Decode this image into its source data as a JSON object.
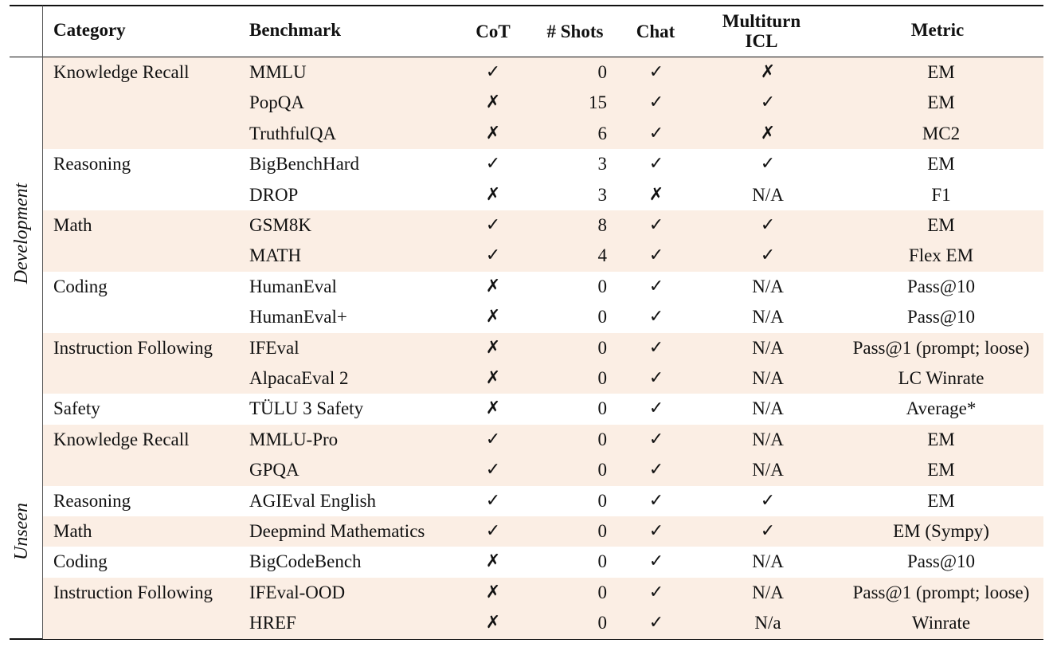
{
  "headers": {
    "category": "Category",
    "benchmark": "Benchmark",
    "cot": "CoT",
    "shots": "# Shots",
    "chat": "Chat",
    "multiturn_line1": "Multiturn",
    "multiturn_line2": "ICL",
    "metric": "Metric"
  },
  "groups": {
    "development": "Development",
    "unseen": "Unseen"
  },
  "marks": {
    "check": "✓",
    "cross": "✗"
  },
  "rows": [
    {
      "category": "Knowledge Recall",
      "benchmark": "MMLU",
      "cot": "✓",
      "shots": "0",
      "chat": "✓",
      "icl": "✗",
      "metric": "EM",
      "shade": true
    },
    {
      "category": "",
      "benchmark": "PopQA",
      "cot": "✗",
      "shots": "15",
      "chat": "✓",
      "icl": "✓",
      "metric": "EM",
      "shade": true
    },
    {
      "category": "",
      "benchmark": "TruthfulQA",
      "cot": "✗",
      "shots": "6",
      "chat": "✓",
      "icl": "✗",
      "metric": "MC2",
      "shade": true
    },
    {
      "category": "Reasoning",
      "benchmark": "BigBenchHard",
      "cot": "✓",
      "shots": "3",
      "chat": "✓",
      "icl": "✓",
      "metric": "EM",
      "shade": false
    },
    {
      "category": "",
      "benchmark": "DROP",
      "cot": "✗",
      "shots": "3",
      "chat": "✗",
      "icl": "N/A",
      "metric": "F1",
      "shade": false
    },
    {
      "category": "Math",
      "benchmark": "GSM8K",
      "cot": "✓",
      "shots": "8",
      "chat": "✓",
      "icl": "✓",
      "metric": "EM",
      "shade": true
    },
    {
      "category": "",
      "benchmark": "MATH",
      "cot": "✓",
      "shots": "4",
      "chat": "✓",
      "icl": "✓",
      "metric": "Flex EM",
      "shade": true
    },
    {
      "category": "Coding",
      "benchmark": "HumanEval",
      "cot": "✗",
      "shots": "0",
      "chat": "✓",
      "icl": "N/A",
      "metric": "Pass@10",
      "shade": false
    },
    {
      "category": "",
      "benchmark": "HumanEval+",
      "cot": "✗",
      "shots": "0",
      "chat": "✓",
      "icl": "N/A",
      "metric": "Pass@10",
      "shade": false
    },
    {
      "category": "Instruction Following",
      "benchmark": "IFEval",
      "cot": "✗",
      "shots": "0",
      "chat": "✓",
      "icl": "N/A",
      "metric": "Pass@1 (prompt; loose)",
      "shade": true
    },
    {
      "category": "",
      "benchmark": "AlpacaEval 2",
      "cot": "✗",
      "shots": "0",
      "chat": "✓",
      "icl": "N/A",
      "metric": "LC Winrate",
      "shade": true
    },
    {
      "category": "Safety",
      "benchmark": "TÜLU 3 Safety",
      "cot": "✗",
      "shots": "0",
      "chat": "✓",
      "icl": "N/A",
      "metric": "Average*",
      "shade": false
    },
    {
      "category": "Knowledge Recall",
      "benchmark": "MMLU-Pro",
      "cot": "✓",
      "shots": "0",
      "chat": "✓",
      "icl": "N/A",
      "metric": "EM",
      "shade": true
    },
    {
      "category": "",
      "benchmark": "GPQA",
      "cot": "✓",
      "shots": "0",
      "chat": "✓",
      "icl": "N/A",
      "metric": "EM",
      "shade": true
    },
    {
      "category": "Reasoning",
      "benchmark": "AGIEval English",
      "cot": "✓",
      "shots": "0",
      "chat": "✓",
      "icl": "✓",
      "metric": "EM",
      "shade": false
    },
    {
      "category": "Math",
      "benchmark": "Deepmind Mathematics",
      "cot": "✓",
      "shots": "0",
      "chat": "✓",
      "icl": "✓",
      "metric": "EM (Sympy)",
      "shade": true
    },
    {
      "category": "Coding",
      "benchmark": "BigCodeBench",
      "cot": "✗",
      "shots": "0",
      "chat": "✓",
      "icl": "N/A",
      "metric": "Pass@10",
      "shade": false
    },
    {
      "category": "Instruction Following",
      "benchmark": "IFEval-OOD",
      "cot": "✗",
      "shots": "0",
      "chat": "✓",
      "icl": "N/A",
      "metric": "Pass@1 (prompt; loose)",
      "shade": true
    },
    {
      "category": "",
      "benchmark": "HREF",
      "cot": "✗",
      "shots": "0",
      "chat": "✓",
      "icl": "N/a",
      "metric": "Winrate",
      "shade": true
    }
  ]
}
